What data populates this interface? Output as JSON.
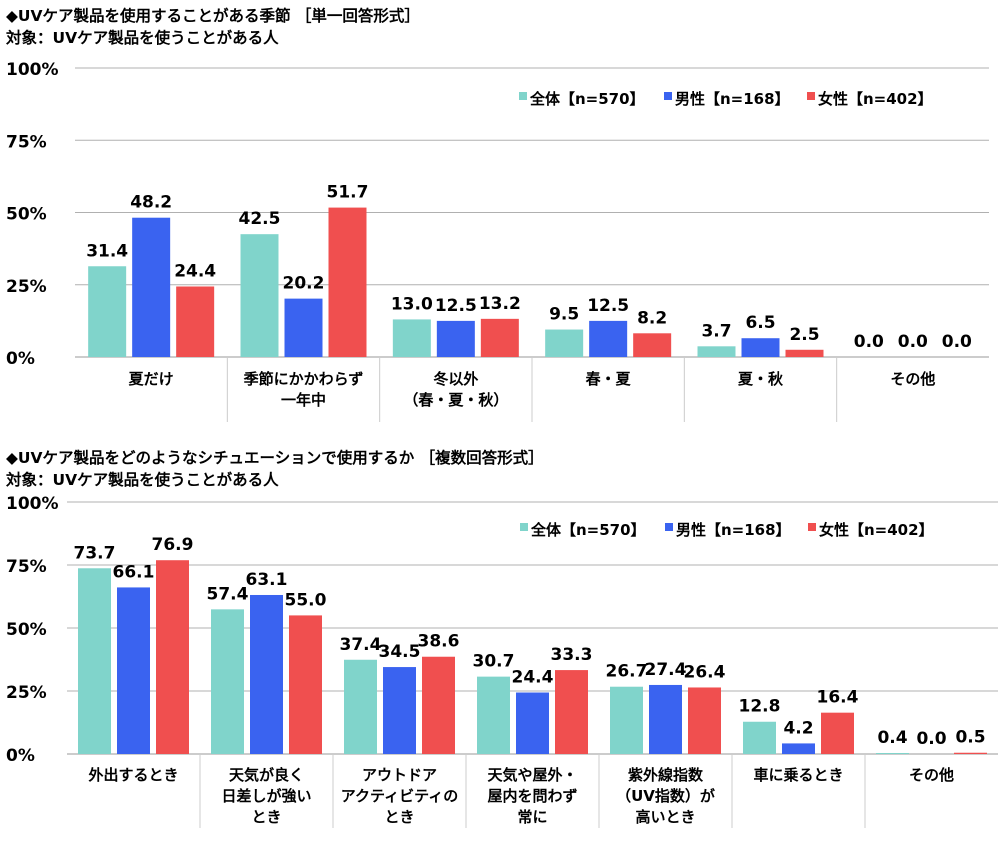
{
  "colors": {
    "all": "#80d4cb",
    "male": "#3a63f0",
    "female": "#f04f4f",
    "grid": "#b0b0b0"
  },
  "chart_data": [
    {
      "type": "bar",
      "title": "◆UVケア製品を使用することがある季節 ［単一回答形式］",
      "subtitle": "対象：UVケア製品を使うことがある人",
      "ylim": [
        0,
        100
      ],
      "yticks": [
        "0%",
        "25%",
        "50%",
        "75%",
        "100%"
      ],
      "grid": true,
      "legend": "top-right",
      "categories": [
        [
          "夏だけ"
        ],
        [
          "季節にかかわらず",
          "一年中"
        ],
        [
          "冬以外",
          "（春・夏・秋）"
        ],
        [
          "春・夏"
        ],
        [
          "夏・秋"
        ],
        [
          "その他"
        ]
      ],
      "series": [
        {
          "name": "全体【n=570】",
          "values": [
            31.4,
            42.5,
            13.0,
            9.5,
            3.7,
            0.0
          ]
        },
        {
          "name": "男性【n=168】",
          "values": [
            48.2,
            20.2,
            12.5,
            12.5,
            6.5,
            0.0
          ]
        },
        {
          "name": "女性【n=402】",
          "values": [
            24.4,
            51.7,
            13.2,
            8.2,
            2.5,
            0.0
          ]
        }
      ]
    },
    {
      "type": "bar",
      "title": "◆UVケア製品をどのようなシチュエーションで使用するか ［複数回答形式］",
      "subtitle": "対象：UVケア製品を使うことがある人",
      "ylim": [
        0,
        100
      ],
      "yticks": [
        "0%",
        "25%",
        "50%",
        "75%",
        "100%"
      ],
      "grid": true,
      "legend": "top-right",
      "categories": [
        [
          "外出するとき"
        ],
        [
          "天気が良く",
          "日差しが強い",
          "とき"
        ],
        [
          "アウトドア",
          "アクティビティの",
          "とき"
        ],
        [
          "天気や屋外・",
          "屋内を問わず",
          "常に"
        ],
        [
          "紫外線指数",
          "（UV指数）が",
          "高いとき"
        ],
        [
          "車に乗るとき"
        ],
        [
          "その他"
        ]
      ],
      "series": [
        {
          "name": "全体【n=570】",
          "values": [
            73.7,
            57.4,
            37.4,
            30.7,
            26.7,
            12.8,
            0.4
          ]
        },
        {
          "name": "男性【n=168】",
          "values": [
            66.1,
            63.1,
            34.5,
            24.4,
            27.4,
            4.2,
            0.0
          ]
        },
        {
          "name": "女性【n=402】",
          "values": [
            76.9,
            55.0,
            38.6,
            33.3,
            26.4,
            16.4,
            0.5
          ]
        }
      ]
    }
  ]
}
